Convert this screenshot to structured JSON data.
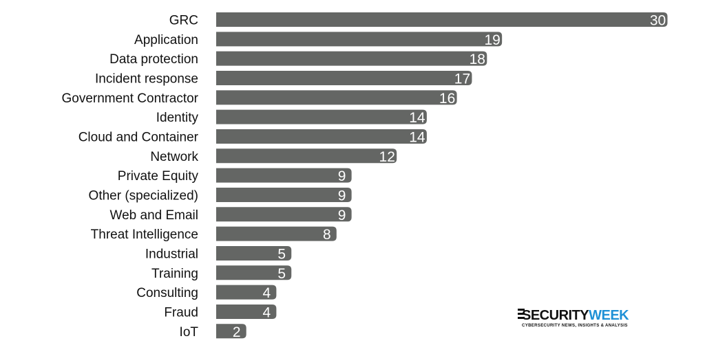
{
  "chart_data": {
    "type": "bar",
    "orientation": "horizontal",
    "categories": [
      "GRC",
      "Application",
      "Data protection",
      "Incident response",
      "Government Contractor",
      "Identity",
      "Cloud and Container",
      "Network",
      "Private Equity",
      "Other (specialized)",
      "Web and Email",
      "Threat Intelligence",
      "Industrial ",
      "Training",
      "Consulting",
      "Fraud",
      "IoT"
    ],
    "values": [
      30,
      19,
      18,
      17,
      16,
      14,
      14,
      12,
      9,
      9,
      9,
      8,
      5,
      5,
      4,
      4,
      2
    ],
    "data_labels": true,
    "bar_color": "#646664",
    "grid": false,
    "legend": "none"
  },
  "logo": {
    "name_security": "SECURITY",
    "name_week": "WEEK",
    "tagline": "CYBERSECURITY NEWS, INSIGHTS & ANALYSIS",
    "accent_color": "#1e90d6"
  }
}
